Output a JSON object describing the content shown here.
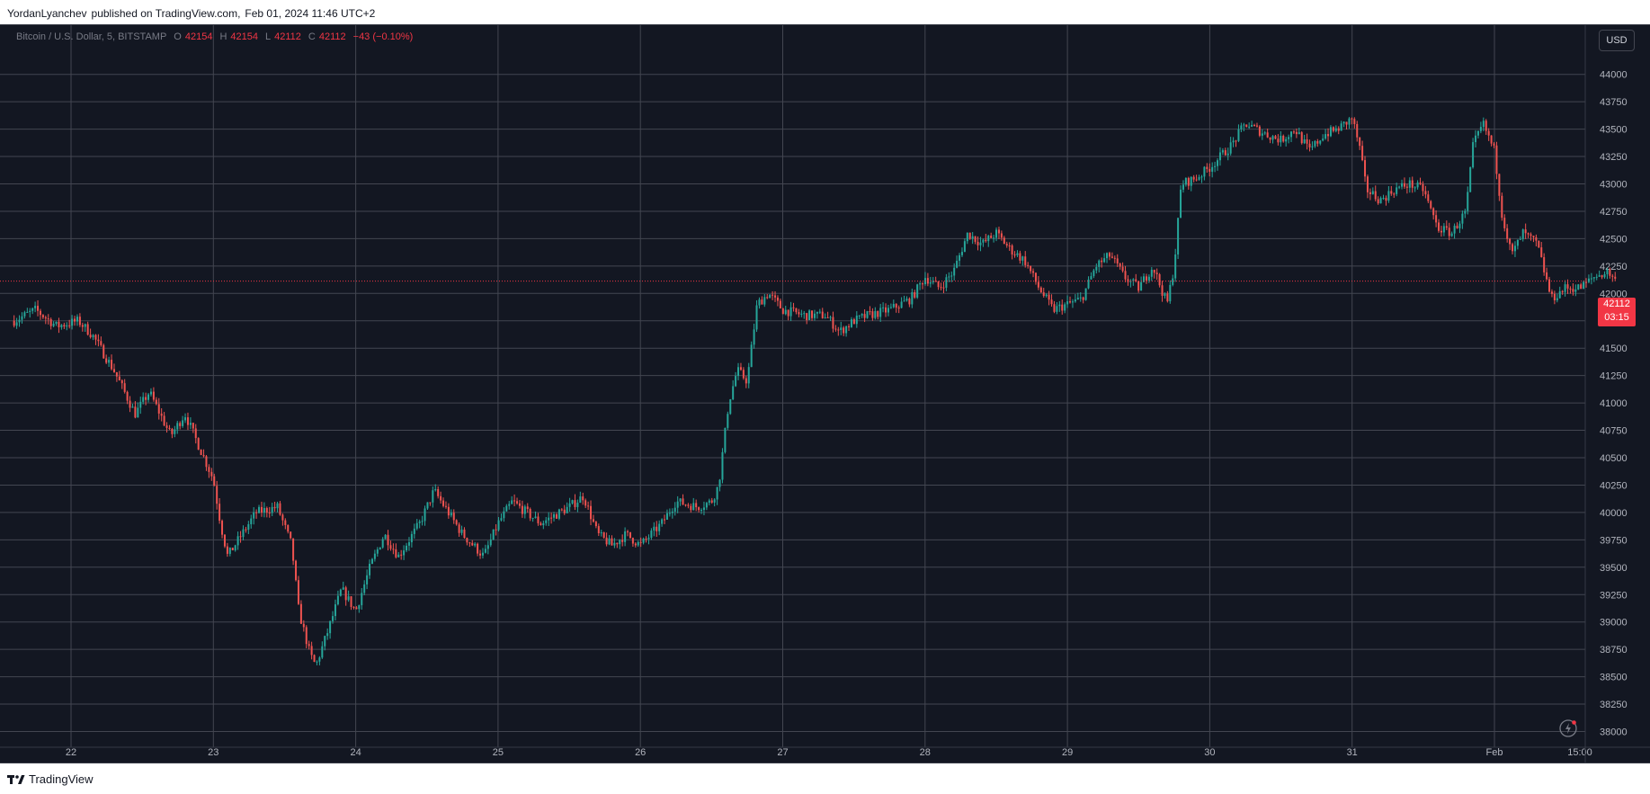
{
  "header": {
    "author": "YordanLyanchev",
    "published_on": "published on TradingView.com,",
    "datetime": "Feb 01, 2024 11:46 UTC+2"
  },
  "legend": {
    "symbol": "Bitcoin / U.S. Dollar, 5, BITSTAMP",
    "o_label": "O",
    "o_value": "42154",
    "h_label": "H",
    "h_value": "42154",
    "l_label": "L",
    "l_value": "42112",
    "c_label": "C",
    "c_value": "42112",
    "change": "−43 (−0.10%)"
  },
  "currency": "USD",
  "price_badge": {
    "price": "42112",
    "countdown": "03:15"
  },
  "footer": {
    "brand": "TradingView"
  },
  "colors": {
    "background": "#131722",
    "grid": "#434651",
    "text": "#b2b5be",
    "up": "#26a69a",
    "down": "#ef5350",
    "last_price": "#f23645"
  },
  "chart_data": {
    "type": "candlestick",
    "symbol": "BTCUSD",
    "interval": "5",
    "exchange": "BITSTAMP",
    "x_ticks": [
      "22",
      "23",
      "24",
      "25",
      "26",
      "27",
      "28",
      "29",
      "30",
      "31",
      "Feb",
      "15:00"
    ],
    "y_ticks": [
      38000,
      38250,
      38500,
      38750,
      39000,
      39250,
      39500,
      39750,
      40000,
      40250,
      40500,
      40750,
      41000,
      41250,
      41500,
      41750,
      42000,
      42250,
      42500,
      42750,
      43000,
      43250,
      43500,
      43750,
      44000
    ],
    "ylim": [
      37950,
      44250
    ],
    "last_price": 42112,
    "price_path": [
      {
        "day": 21.6,
        "price": 41750
      },
      {
        "day": 21.75,
        "price": 41850
      },
      {
        "day": 21.9,
        "price": 41700
      },
      {
        "day": 22.05,
        "price": 41750
      },
      {
        "day": 22.15,
        "price": 41620
      },
      {
        "day": 22.3,
        "price": 41300
      },
      {
        "day": 22.45,
        "price": 40900
      },
      {
        "day": 22.55,
        "price": 41100
      },
      {
        "day": 22.7,
        "price": 40700
      },
      {
        "day": 22.8,
        "price": 40900
      },
      {
        "day": 22.9,
        "price": 40600
      },
      {
        "day": 23.0,
        "price": 40300
      },
      {
        "day": 23.05,
        "price": 39900
      },
      {
        "day": 23.1,
        "price": 39600
      },
      {
        "day": 23.2,
        "price": 39800
      },
      {
        "day": 23.3,
        "price": 40000
      },
      {
        "day": 23.45,
        "price": 40050
      },
      {
        "day": 23.55,
        "price": 39700
      },
      {
        "day": 23.6,
        "price": 39100
      },
      {
        "day": 23.68,
        "price": 38700
      },
      {
        "day": 23.72,
        "price": 38600
      },
      {
        "day": 23.8,
        "price": 38900
      },
      {
        "day": 23.9,
        "price": 39300
      },
      {
        "day": 24.0,
        "price": 39100
      },
      {
        "day": 24.1,
        "price": 39500
      },
      {
        "day": 24.2,
        "price": 39800
      },
      {
        "day": 24.3,
        "price": 39600
      },
      {
        "day": 24.45,
        "price": 39900
      },
      {
        "day": 24.55,
        "price": 40200
      },
      {
        "day": 24.65,
        "price": 40000
      },
      {
        "day": 24.75,
        "price": 39800
      },
      {
        "day": 24.9,
        "price": 39600
      },
      {
        "day": 25.0,
        "price": 39900
      },
      {
        "day": 25.1,
        "price": 40100
      },
      {
        "day": 25.3,
        "price": 39900
      },
      {
        "day": 25.5,
        "price": 40050
      },
      {
        "day": 25.6,
        "price": 40150
      },
      {
        "day": 25.7,
        "price": 39800
      },
      {
        "day": 25.8,
        "price": 39700
      },
      {
        "day": 25.9,
        "price": 39800
      },
      {
        "day": 26.0,
        "price": 39700
      },
      {
        "day": 26.15,
        "price": 39900
      },
      {
        "day": 26.25,
        "price": 40100
      },
      {
        "day": 26.4,
        "price": 40050
      },
      {
        "day": 26.5,
        "price": 40100
      },
      {
        "day": 26.55,
        "price": 40250
      },
      {
        "day": 26.62,
        "price": 41000
      },
      {
        "day": 26.68,
        "price": 41300
      },
      {
        "day": 26.75,
        "price": 41200
      },
      {
        "day": 26.82,
        "price": 41900
      },
      {
        "day": 26.9,
        "price": 42000
      },
      {
        "day": 27.0,
        "price": 41850
      },
      {
        "day": 27.15,
        "price": 41800
      },
      {
        "day": 27.3,
        "price": 41800
      },
      {
        "day": 27.4,
        "price": 41650
      },
      {
        "day": 27.5,
        "price": 41750
      },
      {
        "day": 27.6,
        "price": 41800
      },
      {
        "day": 27.75,
        "price": 41850
      },
      {
        "day": 27.9,
        "price": 41950
      },
      {
        "day": 28.0,
        "price": 42150
      },
      {
        "day": 28.1,
        "price": 42050
      },
      {
        "day": 28.2,
        "price": 42200
      },
      {
        "day": 28.3,
        "price": 42550
      },
      {
        "day": 28.4,
        "price": 42450
      },
      {
        "day": 28.5,
        "price": 42550
      },
      {
        "day": 28.6,
        "price": 42400
      },
      {
        "day": 28.7,
        "price": 42300
      },
      {
        "day": 28.8,
        "price": 42050
      },
      {
        "day": 28.9,
        "price": 41850
      },
      {
        "day": 29.0,
        "price": 41900
      },
      {
        "day": 29.1,
        "price": 41950
      },
      {
        "day": 29.2,
        "price": 42250
      },
      {
        "day": 29.3,
        "price": 42350
      },
      {
        "day": 29.4,
        "price": 42150
      },
      {
        "day": 29.5,
        "price": 42050
      },
      {
        "day": 29.6,
        "price": 42250
      },
      {
        "day": 29.7,
        "price": 41900
      },
      {
        "day": 29.75,
        "price": 42250
      },
      {
        "day": 29.8,
        "price": 43000
      },
      {
        "day": 29.9,
        "price": 43050
      },
      {
        "day": 30.0,
        "price": 43150
      },
      {
        "day": 30.15,
        "price": 43350
      },
      {
        "day": 30.25,
        "price": 43550
      },
      {
        "day": 30.4,
        "price": 43450
      },
      {
        "day": 30.5,
        "price": 43400
      },
      {
        "day": 30.6,
        "price": 43500
      },
      {
        "day": 30.7,
        "price": 43300
      },
      {
        "day": 30.8,
        "price": 43450
      },
      {
        "day": 30.9,
        "price": 43500
      },
      {
        "day": 31.0,
        "price": 43600
      },
      {
        "day": 31.05,
        "price": 43350
      },
      {
        "day": 31.1,
        "price": 42950
      },
      {
        "day": 31.2,
        "price": 42850
      },
      {
        "day": 31.3,
        "price": 42950
      },
      {
        "day": 31.4,
        "price": 43000
      },
      {
        "day": 31.5,
        "price": 42950
      },
      {
        "day": 31.6,
        "price": 42600
      },
      {
        "day": 31.7,
        "price": 42550
      },
      {
        "day": 31.8,
        "price": 42750
      },
      {
        "day": 31.85,
        "price": 43350
      },
      {
        "day": 31.92,
        "price": 43550
      },
      {
        "day": 32.0,
        "price": 43300
      },
      {
        "day": 32.05,
        "price": 42750
      },
      {
        "day": 32.12,
        "price": 42350
      },
      {
        "day": 32.2,
        "price": 42550
      },
      {
        "day": 32.3,
        "price": 42450
      },
      {
        "day": 32.4,
        "price": 41950
      },
      {
        "day": 32.5,
        "price": 42050
      },
      {
        "day": 32.6,
        "price": 42050
      },
      {
        "day": 32.7,
        "price": 42150
      },
      {
        "day": 32.8,
        "price": 42200
      },
      {
        "day": 32.85,
        "price": 42112
      }
    ]
  }
}
